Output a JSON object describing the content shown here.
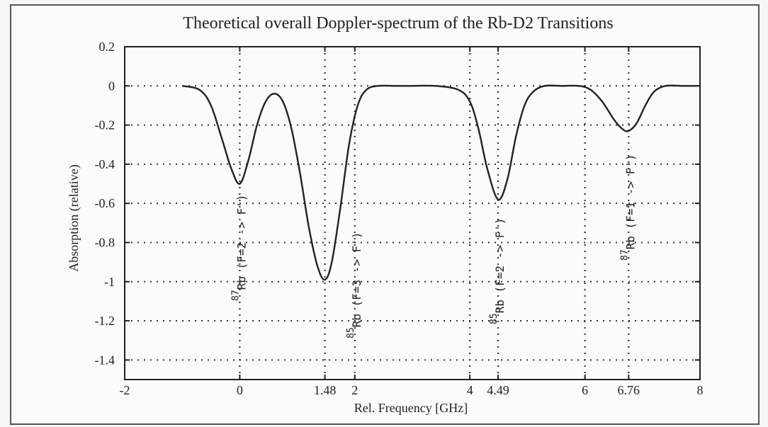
{
  "chart_data": {
    "type": "line",
    "title": "Theoretical overall Doppler-spectrum of the Rb-D2 Transitions",
    "xlabel": "Rel. Frequency [GHz]",
    "ylabel": "Absorption (relative)",
    "xlim": [
      -2,
      8
    ],
    "ylim": [
      -1.5,
      0.2
    ],
    "xticks": [
      -2,
      0,
      1.48,
      2,
      4,
      4.49,
      6,
      6.76,
      8
    ],
    "xtick_labels": [
      "-2",
      "0",
      "1.48",
      "2",
      "4",
      "4.49",
      "6",
      "6.76",
      "8"
    ],
    "yticks": [
      0.2,
      0,
      -0.2,
      -0.4,
      -0.6,
      -0.8,
      -1,
      -1.2,
      -1.4
    ],
    "ytick_labels": [
      "0.2",
      "0",
      "-0.2",
      "-0.4",
      "-0.6",
      "-0.8",
      "-1",
      "-1.2",
      "-1.4"
    ],
    "grid": true,
    "series": [
      {
        "x": [
          -1.0,
          -0.7,
          -0.5,
          -0.3,
          -0.15,
          0.0,
          0.15,
          0.3,
          0.45,
          0.6,
          0.75,
          0.9,
          1.05,
          1.2,
          1.35,
          1.48,
          1.6,
          1.75,
          1.9,
          2.05,
          2.2,
          2.4,
          2.7,
          3.0,
          3.4,
          3.8,
          4.0,
          4.15,
          4.3,
          4.49,
          4.65,
          4.8,
          4.95,
          5.1,
          5.3,
          5.6,
          5.9,
          6.1,
          6.3,
          6.5,
          6.65,
          6.76,
          6.9,
          7.05,
          7.2,
          7.4,
          7.7,
          8.0
        ],
        "y": [
          0.0,
          -0.02,
          -0.1,
          -0.28,
          -0.42,
          -0.5,
          -0.38,
          -0.2,
          -0.08,
          -0.04,
          -0.08,
          -0.22,
          -0.45,
          -0.72,
          -0.92,
          -0.99,
          -0.9,
          -0.62,
          -0.3,
          -0.1,
          -0.02,
          0.0,
          0.0,
          0.0,
          0.0,
          -0.02,
          -0.08,
          -0.22,
          -0.42,
          -0.58,
          -0.48,
          -0.26,
          -0.1,
          -0.03,
          0.0,
          0.0,
          0.0,
          -0.02,
          -0.08,
          -0.17,
          -0.22,
          -0.23,
          -0.19,
          -0.1,
          -0.03,
          0.0,
          0.0,
          0.0
        ]
      }
    ],
    "vlines": [
      0,
      1.48,
      2,
      4,
      4.49,
      6,
      6.76
    ],
    "annotations": [
      {
        "sup": "87",
        "text": "Rb (F=2 -> F')",
        "x": 0
      },
      {
        "sup": "85",
        "text": "Rb (F=3 -> F')",
        "x": 2
      },
      {
        "sup": "85",
        "text": "Rb (F=2 -> F')",
        "x": 4.49
      },
      {
        "sup": "87",
        "text": "Rb (F=1 -> F')",
        "x": 6.76
      }
    ]
  }
}
